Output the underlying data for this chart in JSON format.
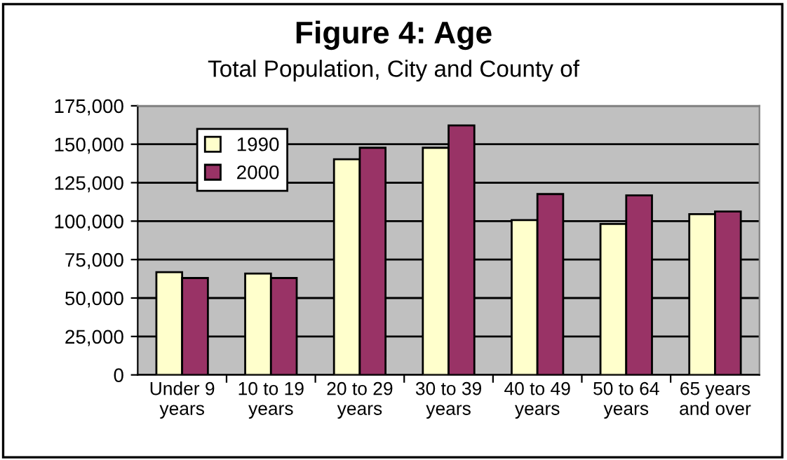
{
  "chart_data": {
    "type": "bar",
    "title": "Figure 4: Age",
    "subtitle": "Total Population, City and County of",
    "categories": [
      "Under 9\nyears",
      "10 to 19\nyears",
      "20 to 29\nyears",
      "30 to 39\nyears",
      "40 to 49\nyears",
      "50 to 64\nyears",
      "65 years\nand over"
    ],
    "series": [
      {
        "name": "1990",
        "color": "#ffffcc",
        "values": [
          66800,
          65900,
          140200,
          147700,
          100700,
          98200,
          104500
        ]
      },
      {
        "name": "2000",
        "color": "#993366",
        "values": [
          63000,
          63000,
          147700,
          162200,
          117600,
          116700,
          106300
        ]
      }
    ],
    "ylim": [
      0,
      175000
    ],
    "yticks": [
      {
        "value": 0,
        "label": "0"
      },
      {
        "value": 25000,
        "label": "25,000"
      },
      {
        "value": 50000,
        "label": "50,000"
      },
      {
        "value": 75000,
        "label": "75,000"
      },
      {
        "value": 100000,
        "label": "100,000"
      },
      {
        "value": 125000,
        "label": "125,000"
      },
      {
        "value": 150000,
        "label": "150,000"
      },
      {
        "value": 175000,
        "label": "175,000"
      }
    ],
    "grid": "y",
    "legend": "top left"
  }
}
